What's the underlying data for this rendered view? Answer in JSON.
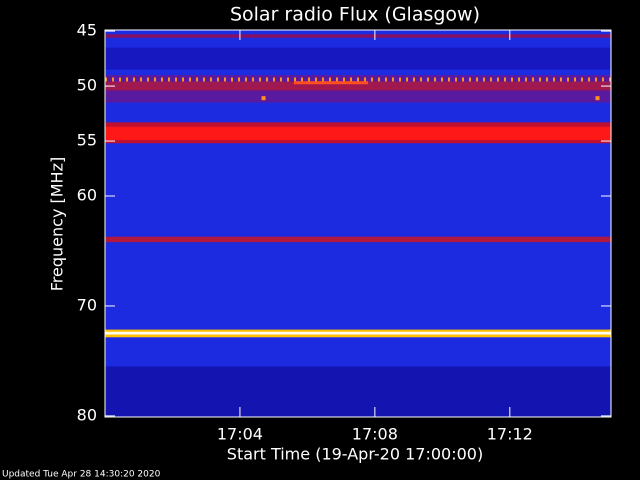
{
  "chart_data": {
    "type": "spectrogram",
    "title": "Solar radio Flux (Glasgow)",
    "ylabel": "Frequency [MHz]",
    "xlabel": "Start Time (19-Apr-20 17:00:00)",
    "footer": "Updated Tue Apr 28 14:30:20 2020",
    "xlim": [
      0,
      15
    ],
    "ylim": [
      44.9,
      80.1
    ],
    "y_inverted": true,
    "xticks": [
      {
        "value": 4,
        "label": "17:04"
      },
      {
        "value": 8,
        "label": "17:08"
      },
      {
        "value": 12,
        "label": "17:12"
      }
    ],
    "yticks": [
      45,
      50,
      55,
      60,
      70,
      80
    ],
    "background_color": "#1c2ae0",
    "bands": [
      {
        "range": [
          45.3,
          45.6
        ],
        "color": "#8a1060"
      },
      {
        "range": [
          46.5,
          48.5
        ],
        "color": "#1818c0"
      },
      {
        "range": [
          49.0,
          51.5
        ],
        "color": "#5a1aa0"
      },
      {
        "range": [
          49.6,
          50.4
        ],
        "color": "#a01850"
      },
      {
        "range": [
          53.3,
          55.2
        ],
        "color": "#c01030"
      },
      {
        "range": [
          53.7,
          54.9
        ],
        "color": "#ff1818"
      },
      {
        "range": [
          63.7,
          64.2
        ],
        "color": "#b01840"
      },
      {
        "range": [
          72.15,
          72.85
        ],
        "color": "#ffc000"
      },
      {
        "range": [
          72.35,
          72.6
        ],
        "color": "#fffff0"
      },
      {
        "range": [
          75.5,
          80.1
        ],
        "color": "#1414b0"
      }
    ],
    "dotted_line": {
      "freq": 49.4,
      "color": "#ff9020"
    },
    "segments": [
      {
        "x": [
          5.6,
          7.8
        ],
        "freq": 49.7,
        "color": "#ff5020"
      }
    ],
    "points": {
      "x": [
        4.7,
        14.6
      ],
      "y": [
        51.1,
        51.1
      ],
      "color": "#ff9020"
    }
  }
}
